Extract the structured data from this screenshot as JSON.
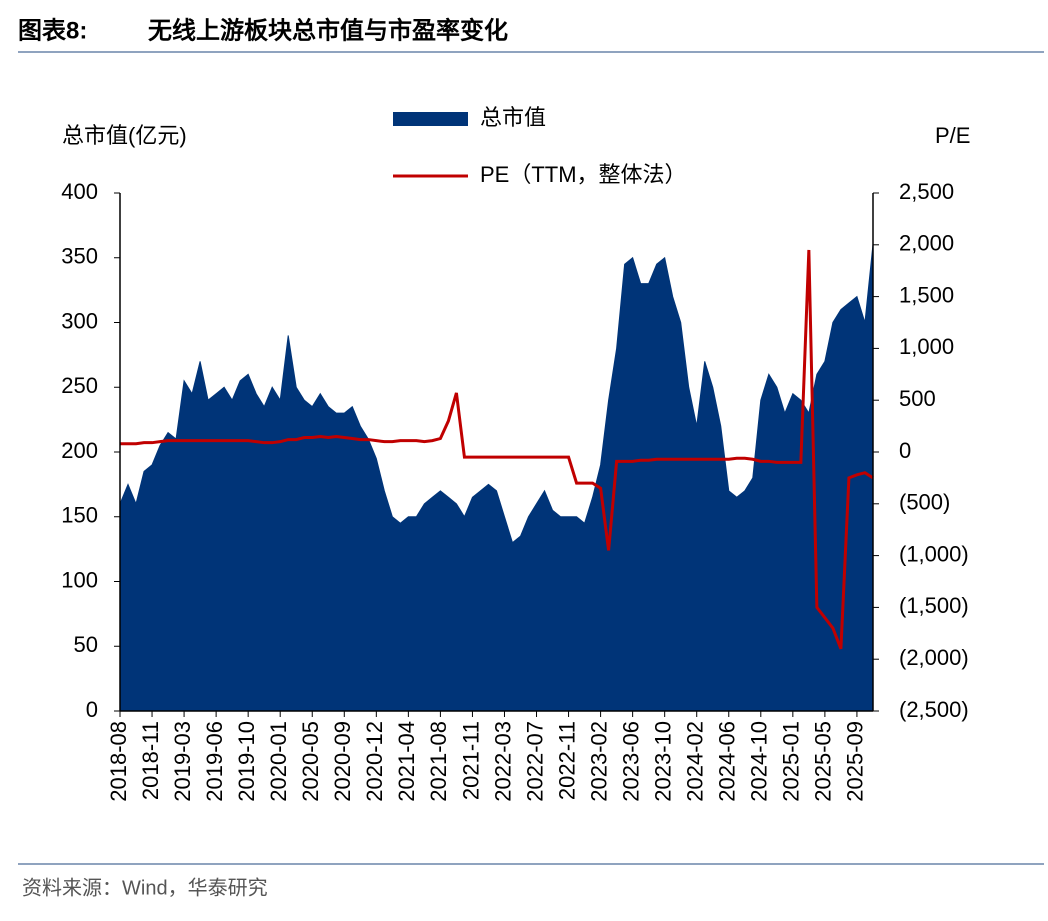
{
  "figure_label": "图表8:",
  "chart_data": {
    "type": "combo",
    "title": "无线上游板块总市值与市盈率变化",
    "y_label": "总市值(亿元)",
    "y2_label": "P/E",
    "categories": [
      "2018-08",
      null,
      null,
      null,
      "2018-11",
      null,
      null,
      null,
      "2019-03",
      null,
      null,
      null,
      "2019-06",
      null,
      null,
      null,
      "2019-10",
      null,
      null,
      null,
      "2020-01",
      null,
      null,
      null,
      "2020-05",
      null,
      null,
      null,
      "2020-09",
      null,
      null,
      null,
      "2020-12",
      null,
      null,
      null,
      "2021-04",
      null,
      null,
      null,
      "2021-08",
      null,
      null,
      null,
      "2021-11",
      null,
      null,
      null,
      "2022-03",
      null,
      null,
      null,
      "2022-07",
      null,
      null,
      null,
      "2022-11",
      null,
      null,
      null,
      "2023-02",
      null,
      null,
      null,
      "2023-06",
      null,
      null,
      null,
      "2023-10",
      null,
      null,
      null,
      "2024-02",
      null,
      null,
      null,
      "2024-06",
      null,
      null,
      null,
      "2024-10",
      null,
      null,
      null,
      "2025-01",
      null,
      null,
      null,
      "2025-05",
      null,
      null,
      null,
      "2025-09",
      null,
      null
    ],
    "series": [
      {
        "name": "总市值",
        "type": "area",
        "color": "#003478",
        "values": [
          160,
          175,
          160,
          185,
          190,
          205,
          215,
          210,
          255,
          245,
          270,
          240,
          245,
          250,
          240,
          255,
          260,
          245,
          235,
          250,
          240,
          290,
          250,
          240,
          235,
          245,
          235,
          230,
          230,
          235,
          220,
          210,
          195,
          170,
          150,
          145,
          150,
          150,
          160,
          165,
          170,
          165,
          160,
          150,
          165,
          170,
          175,
          170,
          150,
          130,
          135,
          150,
          160,
          170,
          155,
          150,
          150,
          150,
          145,
          165,
          190,
          240,
          280,
          345,
          350,
          330,
          330,
          345,
          350,
          320,
          300,
          250,
          220,
          270,
          250,
          220,
          170,
          165,
          170,
          180,
          240,
          260,
          250,
          230,
          245,
          240,
          230,
          260,
          270,
          300,
          310,
          315,
          320,
          300,
          360
        ]
      },
      {
        "name": "PE（TTM，整体法）",
        "type": "line",
        "axis": "y2",
        "color": "#c00000",
        "values": [
          80,
          80,
          80,
          90,
          90,
          100,
          110,
          110,
          110,
          110,
          110,
          110,
          110,
          110,
          110,
          110,
          110,
          100,
          90,
          90,
          100,
          120,
          120,
          140,
          140,
          150,
          140,
          150,
          140,
          130,
          120,
          120,
          110,
          100,
          100,
          110,
          110,
          110,
          100,
          110,
          130,
          300,
          570,
          -50,
          -50,
          -50,
          -50,
          -50,
          -50,
          -50,
          -50,
          -50,
          -50,
          -50,
          -50,
          -50,
          -50,
          -300,
          -300,
          -300,
          -350,
          -950,
          -90,
          -90,
          -90,
          -80,
          -80,
          -70,
          -70,
          -70,
          -70,
          -70,
          -70,
          -70,
          -70,
          -70,
          -70,
          -60,
          -60,
          -70,
          -90,
          -90,
          -100,
          -100,
          -100,
          -100,
          1950,
          -1500,
          -1600,
          -1700,
          -1900,
          -250,
          -220,
          -200,
          -250
        ]
      }
    ],
    "ylim": [
      0,
      400
    ],
    "yticks": [
      0,
      50,
      100,
      150,
      200,
      250,
      300,
      350,
      400
    ],
    "y2lim": [
      -2500,
      2500
    ],
    "y2ticks": [
      {
        "value": -2500,
        "label": "(2,500)"
      },
      {
        "value": -2000,
        "label": "(2,000)"
      },
      {
        "value": -1500,
        "label": "(1,500)"
      },
      {
        "value": -1000,
        "label": "(1,000)"
      },
      {
        "value": -500,
        "label": "(500)"
      },
      0,
      500,
      {
        "value": 1000,
        "label": "1,000"
      },
      {
        "value": 1500,
        "label": "1,500"
      },
      {
        "value": 2000,
        "label": "2,000"
      },
      {
        "value": 2500,
        "label": "2,500"
      }
    ]
  },
  "source": "资料来源：Wind，华泰研究"
}
